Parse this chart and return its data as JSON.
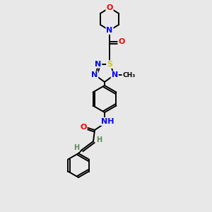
{
  "bg_color": "#e8e8e8",
  "atom_colors": {
    "N": "#0000ff",
    "O": "#ff0000",
    "S": "#cccc00",
    "C": "#000000",
    "H": "#5a8a5a"
  },
  "bond_color": "#000000",
  "figsize": [
    3.0,
    3.0
  ],
  "dpi": 100
}
